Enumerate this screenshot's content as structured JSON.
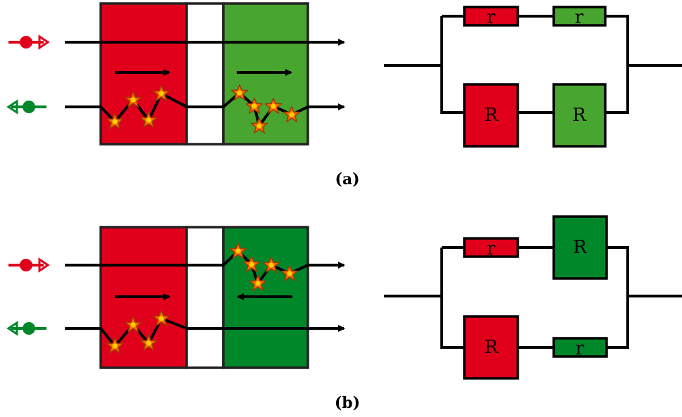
{
  "colors": {
    "red": "#e0001b",
    "green_light": "#48a52f",
    "green_dark": "#00872a",
    "star_fill": "#ff6a00",
    "star_stroke": "#b34700",
    "gap": "#ffffff"
  },
  "figure_a": {
    "caption": "(a)",
    "resistors": {
      "top_left": "r",
      "top_right": "r",
      "bottom_left": "R",
      "bottom_right": "R"
    }
  },
  "figure_b": {
    "caption": "(b)",
    "resistors": {
      "top_left": "r",
      "top_right": "R",
      "bottom_left": "R",
      "bottom_right": "r"
    }
  },
  "icons": [
    "red-forward-dot-arrow-icon",
    "green-backward-dot-arrow-icon",
    "star-icon",
    "arrow-icon"
  ]
}
